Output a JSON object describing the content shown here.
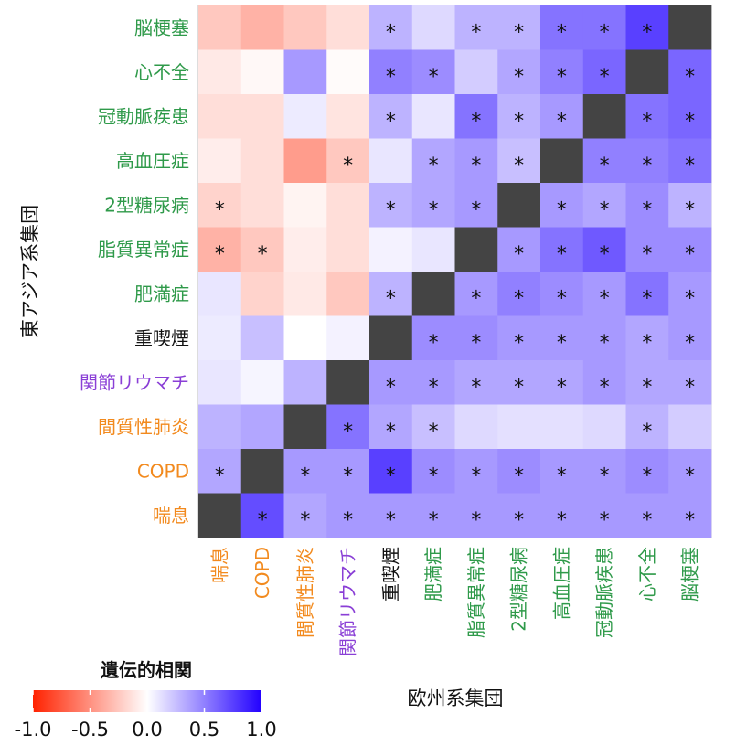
{
  "chart_data": {
    "type": "heatmap",
    "x_axis_title": "欧州系集団",
    "y_axis_title": "東アジア系集団",
    "legend_title": "遺伝的相関",
    "legend_ticks": [
      "-1.0",
      "-0.5",
      "0.0",
      "0.5",
      "1.0"
    ],
    "value_range": [
      -1,
      1
    ],
    "colors": {
      "negative": "#ff2200",
      "zero": "#ffffff",
      "positive": "#2200ff",
      "diagonal": "#444444"
    },
    "x_labels": [
      "喘息",
      "COPD",
      "間質性肺炎",
      "関節リウマチ",
      "重喫煙",
      "肥満症",
      "脂質異常症",
      "2型糖尿病",
      "高血圧症",
      "冠動脈疾患",
      "心不全",
      "脳梗塞"
    ],
    "x_label_colors": [
      "#f28a1e",
      "#f28a1e",
      "#f28a1e",
      "#8a3fd6",
      "#111111",
      "#2f9a4a",
      "#2f9a4a",
      "#2f9a4a",
      "#2f9a4a",
      "#2f9a4a",
      "#2f9a4a",
      "#2f9a4a"
    ],
    "y_labels": [
      "脳梗塞",
      "心不全",
      "冠動脈疾患",
      "高血圧症",
      "2型糖尿病",
      "脂質異常症",
      "肥満症",
      "重喫煙",
      "関節リウマチ",
      "間質性肺炎",
      "COPD",
      "喘息"
    ],
    "y_label_colors": [
      "#2f9a4a",
      "#2f9a4a",
      "#2f9a4a",
      "#2f9a4a",
      "#2f9a4a",
      "#2f9a4a",
      "#2f9a4a",
      "#111111",
      "#8a3fd6",
      "#f28a1e",
      "#f28a1e",
      "#f28a1e"
    ],
    "values": [
      [
        -0.25,
        -0.35,
        -0.25,
        -0.15,
        0.3,
        0.15,
        0.3,
        0.3,
        0.55,
        0.55,
        0.75,
        null
      ],
      [
        -0.1,
        -0.03,
        0.4,
        -0.02,
        0.5,
        0.45,
        0.2,
        0.35,
        0.5,
        0.6,
        null,
        0.6
      ],
      [
        -0.15,
        -0.15,
        0.08,
        -0.12,
        0.3,
        0.1,
        0.55,
        0.3,
        0.4,
        null,
        0.55,
        0.6
      ],
      [
        -0.08,
        -0.15,
        -0.45,
        -0.25,
        0.1,
        0.35,
        0.4,
        0.25,
        null,
        0.5,
        0.5,
        0.55
      ],
      [
        -0.2,
        -0.15,
        -0.05,
        -0.15,
        0.3,
        0.35,
        0.4,
        null,
        0.4,
        0.35,
        0.45,
        0.3
      ],
      [
        -0.35,
        -0.25,
        -0.08,
        -0.15,
        0.05,
        0.1,
        null,
        0.4,
        0.55,
        0.65,
        0.45,
        0.45
      ],
      [
        0.1,
        -0.2,
        -0.1,
        -0.25,
        0.3,
        null,
        0.4,
        0.5,
        0.45,
        0.4,
        0.55,
        0.4
      ],
      [
        0.08,
        0.25,
        0.0,
        0.05,
        null,
        0.45,
        0.45,
        0.4,
        0.4,
        0.4,
        0.35,
        0.4
      ],
      [
        0.1,
        0.04,
        0.3,
        null,
        0.4,
        0.4,
        0.35,
        0.35,
        0.35,
        0.4,
        0.35,
        0.35
      ],
      [
        0.3,
        0.35,
        null,
        0.55,
        0.35,
        0.25,
        0.15,
        0.12,
        0.12,
        0.15,
        0.3,
        0.2
      ],
      [
        0.35,
        null,
        0.4,
        0.4,
        0.75,
        0.45,
        0.4,
        0.45,
        0.4,
        0.4,
        0.45,
        0.4
      ],
      [
        null,
        0.7,
        0.35,
        0.4,
        0.4,
        0.4,
        0.4,
        0.4,
        0.4,
        0.4,
        0.4,
        0.4
      ]
    ],
    "significant": [
      [
        0,
        0,
        0,
        0,
        1,
        0,
        1,
        1,
        1,
        1,
        1,
        0
      ],
      [
        0,
        0,
        0,
        0,
        1,
        1,
        0,
        1,
        1,
        1,
        0,
        1
      ],
      [
        0,
        0,
        0,
        0,
        1,
        0,
        1,
        1,
        1,
        0,
        1,
        1
      ],
      [
        0,
        0,
        0,
        1,
        0,
        1,
        1,
        1,
        0,
        1,
        1,
        1
      ],
      [
        1,
        0,
        0,
        0,
        1,
        1,
        1,
        0,
        1,
        1,
        1,
        1
      ],
      [
        1,
        1,
        0,
        0,
        0,
        0,
        0,
        1,
        1,
        1,
        1,
        1
      ],
      [
        0,
        0,
        0,
        0,
        1,
        0,
        1,
        1,
        1,
        1,
        1,
        1
      ],
      [
        0,
        0,
        0,
        0,
        0,
        1,
        1,
        1,
        1,
        1,
        1,
        1
      ],
      [
        0,
        0,
        0,
        0,
        1,
        1,
        1,
        1,
        1,
        1,
        1,
        1
      ],
      [
        0,
        0,
        0,
        1,
        1,
        1,
        0,
        0,
        0,
        0,
        1,
        0
      ],
      [
        1,
        0,
        1,
        1,
        1,
        1,
        1,
        1,
        1,
        1,
        1,
        1
      ],
      [
        0,
        1,
        1,
        1,
        1,
        1,
        1,
        1,
        1,
        1,
        1,
        1
      ]
    ],
    "significance_marker": "*",
    "grid": false,
    "legend_position": "bottom-left"
  }
}
